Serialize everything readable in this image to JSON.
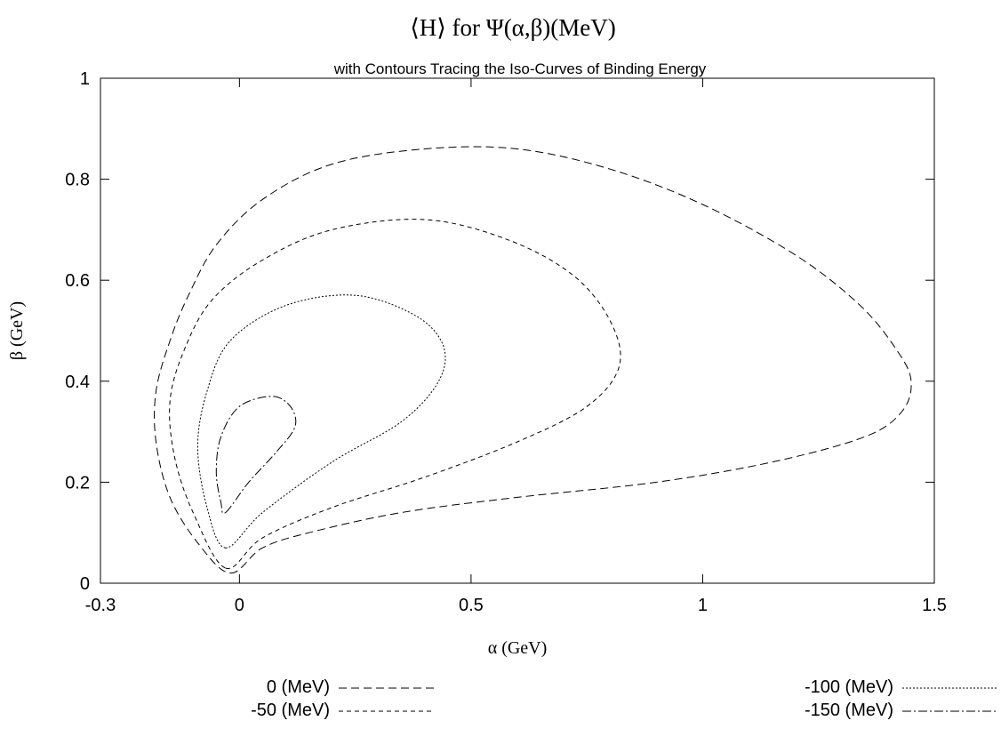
{
  "chart_data": {
    "type": "line",
    "title": "⟨H⟩ for Ψ(α,β)(MeV)",
    "subtitle": "with Contours Tracing the Iso-Curves of Binding Energy",
    "xlabel": "α (GeV)",
    "ylabel": "β (GeV)",
    "xlim": [
      -0.3,
      1.5
    ],
    "ylim": [
      0,
      1
    ],
    "x_ticks": [
      "-0.3",
      "0",
      "0.5",
      "1",
      "1.5"
    ],
    "y_ticks": [
      "0",
      "0.2",
      "0.4",
      "0.6",
      "0.8",
      "1"
    ],
    "grid": false,
    "legend_position": "bottom",
    "series": [
      {
        "name": "0 (MeV)",
        "dash": "9,5",
        "points": [
          [
            -0.02,
            0.02
          ],
          [
            0.05,
            0.07
          ],
          [
            0.15,
            0.1
          ],
          [
            0.35,
            0.14
          ],
          [
            0.6,
            0.17
          ],
          [
            0.9,
            0.2
          ],
          [
            1.15,
            0.24
          ],
          [
            1.35,
            0.29
          ],
          [
            1.43,
            0.34
          ],
          [
            1.45,
            0.4
          ],
          [
            1.42,
            0.46
          ],
          [
            1.34,
            0.55
          ],
          [
            1.2,
            0.65
          ],
          [
            1.0,
            0.75
          ],
          [
            0.8,
            0.82
          ],
          [
            0.6,
            0.86
          ],
          [
            0.4,
            0.86
          ],
          [
            0.2,
            0.83
          ],
          [
            0.05,
            0.76
          ],
          [
            -0.05,
            0.67
          ],
          [
            -0.11,
            0.57
          ],
          [
            -0.15,
            0.48
          ],
          [
            -0.18,
            0.38
          ],
          [
            -0.18,
            0.28
          ],
          [
            -0.15,
            0.17
          ],
          [
            -0.09,
            0.08
          ],
          [
            -0.02,
            0.02
          ]
        ]
      },
      {
        "name": "-50 (MeV)",
        "dash": "5,4",
        "points": [
          [
            -0.03,
            0.03
          ],
          [
            0.05,
            0.09
          ],
          [
            0.2,
            0.15
          ],
          [
            0.4,
            0.21
          ],
          [
            0.6,
            0.28
          ],
          [
            0.75,
            0.35
          ],
          [
            0.82,
            0.43
          ],
          [
            0.8,
            0.52
          ],
          [
            0.72,
            0.61
          ],
          [
            0.58,
            0.68
          ],
          [
            0.4,
            0.72
          ],
          [
            0.2,
            0.7
          ],
          [
            0.05,
            0.64
          ],
          [
            -0.06,
            0.56
          ],
          [
            -0.12,
            0.46
          ],
          [
            -0.15,
            0.36
          ],
          [
            -0.14,
            0.25
          ],
          [
            -0.1,
            0.14
          ],
          [
            -0.03,
            0.03
          ]
        ]
      },
      {
        "name": "-100 (MeV)",
        "dash": "2,2",
        "points": [
          [
            -0.03,
            0.07
          ],
          [
            0.05,
            0.14
          ],
          [
            0.2,
            0.24
          ],
          [
            0.35,
            0.32
          ],
          [
            0.43,
            0.4
          ],
          [
            0.44,
            0.47
          ],
          [
            0.38,
            0.53
          ],
          [
            0.25,
            0.57
          ],
          [
            0.1,
            0.55
          ],
          [
            -0.02,
            0.48
          ],
          [
            -0.07,
            0.38
          ],
          [
            -0.09,
            0.27
          ],
          [
            -0.07,
            0.15
          ],
          [
            -0.03,
            0.07
          ]
        ]
      },
      {
        "name": "-150 (MeV)",
        "dash": "10,3,2,3",
        "points": [
          [
            -0.03,
            0.14
          ],
          [
            0.02,
            0.2
          ],
          [
            0.08,
            0.26
          ],
          [
            0.12,
            0.31
          ],
          [
            0.11,
            0.35
          ],
          [
            0.07,
            0.37
          ],
          [
            0.0,
            0.35
          ],
          [
            -0.04,
            0.29
          ],
          [
            -0.05,
            0.22
          ],
          [
            -0.04,
            0.16
          ],
          [
            -0.03,
            0.14
          ]
        ]
      }
    ]
  }
}
